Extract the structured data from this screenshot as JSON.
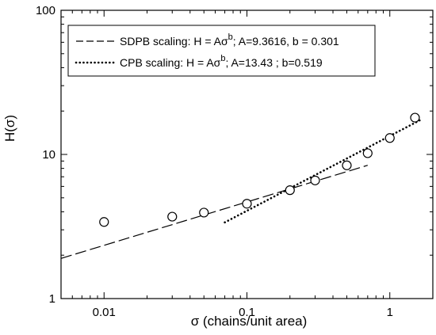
{
  "chart_data": {
    "type": "scatter",
    "xscale": "log",
    "yscale": "log",
    "xlim": [
      0.005,
      2
    ],
    "ylim": [
      1,
      100
    ],
    "xlabel": "σ (chains/unit area)",
    "ylabel": "H(σ)",
    "x_ticks": [
      {
        "value": 0.01,
        "label": "0.01"
      },
      {
        "value": 0.1,
        "label": "0.1"
      },
      {
        "value": 1,
        "label": "1"
      }
    ],
    "y_ticks": [
      {
        "value": 1,
        "label": "1"
      },
      {
        "value": 10,
        "label": "10"
      },
      {
        "value": 100,
        "label": "100"
      }
    ],
    "grid": false,
    "legend_position": "top",
    "series": [
      {
        "kind": "markers",
        "marker": "open-circle",
        "x": [
          0.01,
          0.03,
          0.05,
          0.1,
          0.2,
          0.3,
          0.5,
          0.7,
          1.0,
          1.5
        ],
        "y": [
          3.4,
          3.7,
          3.95,
          4.55,
          5.65,
          6.6,
          8.4,
          10.2,
          13.0,
          18.0
        ]
      },
      {
        "name": "SDPB scaling: H = Aσ^b; A=9.3616, b = 0.301",
        "kind": "fit-line",
        "style": "dashed",
        "A": 9.3616,
        "b": 0.301,
        "x_range": [
          0.005,
          0.7
        ]
      },
      {
        "name": "CPB scaling: H = Aσ^b; A=13.43 ; b=0.519",
        "kind": "fit-line",
        "style": "dotted",
        "A": 13.43,
        "b": 0.519,
        "x_range": [
          0.07,
          1.65
        ]
      }
    ],
    "legend": [
      {
        "pre": "SDPB scaling: H = Aσ",
        "sup": "b",
        "post": "; A=9.3616, b = 0.301",
        "style": "dashed"
      },
      {
        "pre": "CPB scaling: H = Aσ",
        "sup": "b",
        "post": "; A=13.43 ; b=0.519",
        "style": "dotted"
      }
    ]
  }
}
